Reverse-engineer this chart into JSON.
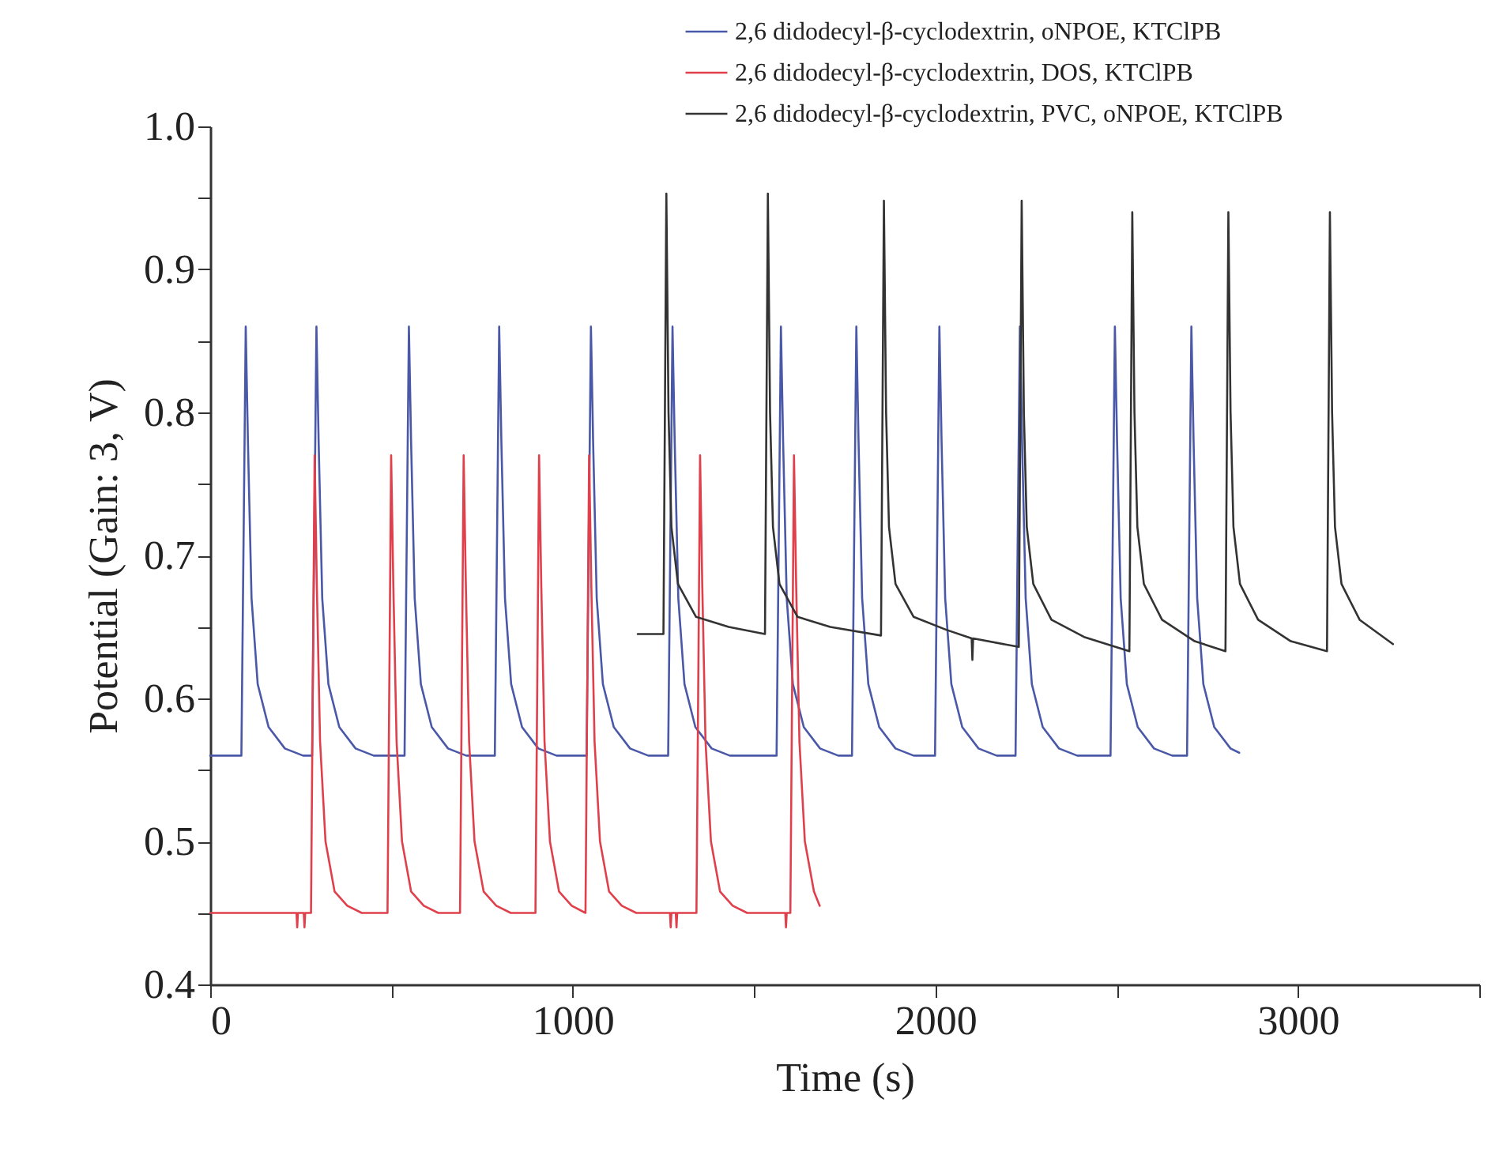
{
  "chart_data": {
    "type": "line",
    "xlabel": "Time (s)",
    "ylabel": "Potential (Gain: 3, V)",
    "xlim": [
      0,
      3500
    ],
    "ylim": [
      0.4,
      1.0
    ],
    "xticks": [
      0,
      {
        "value": 500,
        "label": null
      },
      1000,
      {
        "value": 1500,
        "label": null
      },
      2000,
      {
        "value": 2500,
        "label": null
      },
      3000,
      {
        "value": 3500,
        "label": null
      }
    ],
    "yticks": [
      0.4,
      {
        "value": 0.45,
        "label": null
      },
      0.5,
      {
        "value": 0.55,
        "label": null
      },
      0.6,
      {
        "value": 0.65,
        "label": null
      },
      0.7,
      {
        "value": 0.75,
        "label": null
      },
      0.8,
      {
        "value": 0.85,
        "label": null
      },
      0.9,
      {
        "value": 0.95,
        "label": null
      },
      {
        "value": 1,
        "label": "1.0"
      }
    ],
    "grid": false,
    "legend": "top right",
    "marker": "none",
    "line_style": "solid",
    "series": [
      {
        "name": "2,6 didodecyl-β-cyclodextrin, oNPOE, KTClPB",
        "color": "#4a58a8",
        "x": [
          0,
          86,
          98,
          104,
          114,
          131,
          161,
          206,
          256,
          281,
          293,
          299,
          309,
          326,
          356,
          401,
          451,
          536,
          548,
          554,
          564,
          581,
          611,
          656,
          706,
          785,
          797,
          803,
          813,
          830,
          860,
          905,
          955,
          1038,
          1050,
          1056,
          1066,
          1083,
          1113,
          1158,
          1208,
          1263,
          1275,
          1281,
          1291,
          1308,
          1338,
          1383,
          1433,
          1562,
          1574,
          1580,
          1590,
          1607,
          1637,
          1682,
          1732,
          1770,
          1782,
          1788,
          1798,
          1815,
          1845,
          1890,
          1940,
          1999,
          2011,
          2017,
          2027,
          2044,
          2074,
          2119,
          2169,
          2221,
          2233,
          2239,
          2249,
          2266,
          2296,
          2341,
          2391,
          2483,
          2495,
          2501,
          2511,
          2528,
          2558,
          2603,
          2653,
          2694,
          2706,
          2712,
          2722,
          2739,
          2769,
          2814,
          2838
        ],
        "values": [
          0.56,
          0.56,
          0.86,
          0.78,
          0.67,
          0.61,
          0.58,
          0.565,
          0.56,
          0.56,
          0.86,
          0.78,
          0.67,
          0.61,
          0.58,
          0.565,
          0.56,
          0.56,
          0.86,
          0.78,
          0.67,
          0.61,
          0.58,
          0.565,
          0.56,
          0.56,
          0.86,
          0.78,
          0.67,
          0.61,
          0.58,
          0.565,
          0.56,
          0.56,
          0.86,
          0.78,
          0.67,
          0.61,
          0.58,
          0.565,
          0.56,
          0.56,
          0.86,
          0.78,
          0.67,
          0.61,
          0.58,
          0.565,
          0.56,
          0.56,
          0.86,
          0.78,
          0.67,
          0.61,
          0.58,
          0.565,
          0.56,
          0.56,
          0.86,
          0.78,
          0.67,
          0.61,
          0.58,
          0.565,
          0.56,
          0.56,
          0.86,
          0.78,
          0.67,
          0.61,
          0.58,
          0.565,
          0.56,
          0.56,
          0.86,
          0.78,
          0.67,
          0.61,
          0.58,
          0.565,
          0.56,
          0.56,
          0.86,
          0.78,
          0.67,
          0.61,
          0.58,
          0.565,
          0.56,
          0.56,
          0.86,
          0.78,
          0.67,
          0.61,
          0.58,
          0.565,
          0.562
        ]
      },
      {
        "name": "2,6 didodecyl-β-cyclodextrin, DOS, KTClPB",
        "color": "#e0404c",
        "x": [
          0,
          238,
          240,
          242,
          258,
          260,
          262,
          278,
          288,
          294,
          303,
          318,
          343,
          378,
          418,
          489,
          499,
          505,
          514,
          529,
          554,
          589,
          629,
          689,
          699,
          705,
          714,
          729,
          754,
          789,
          829,
          897,
          907,
          913,
          922,
          937,
          962,
          997,
          1035,
          1045,
          1051,
          1060,
          1075,
          1100,
          1135,
          1175,
          1268,
          1270,
          1272,
          1284,
          1286,
          1288,
          1341,
          1351,
          1357,
          1366,
          1381,
          1406,
          1441,
          1481,
          1586,
          1588,
          1590,
          1600,
          1610,
          1616,
          1625,
          1640,
          1665,
          1681
        ],
        "values": [
          0.45,
          0.45,
          0.44,
          0.45,
          0.45,
          0.44,
          0.45,
          0.45,
          0.77,
          0.68,
          0.57,
          0.5,
          0.465,
          0.455,
          0.45,
          0.45,
          0.77,
          0.68,
          0.57,
          0.5,
          0.465,
          0.455,
          0.45,
          0.45,
          0.77,
          0.68,
          0.57,
          0.5,
          0.465,
          0.455,
          0.45,
          0.45,
          0.77,
          0.68,
          0.57,
          0.5,
          0.465,
          0.455,
          0.45,
          0.77,
          0.68,
          0.57,
          0.5,
          0.465,
          0.455,
          0.45,
          0.45,
          0.44,
          0.45,
          0.45,
          0.44,
          0.45,
          0.45,
          0.77,
          0.68,
          0.57,
          0.5,
          0.465,
          0.455,
          0.45,
          0.45,
          0.44,
          0.45,
          0.45,
          0.77,
          0.68,
          0.57,
          0.5,
          0.465,
          0.455
        ]
      },
      {
        "name": "2,6 didodecyl-β-cyclodextrin, PVC, oNPOE, KTClPB",
        "color": "#333333",
        "x": [
          1179,
          1250,
          1258,
          1264,
          1272,
          1290,
          1340,
          1430,
          1530,
          1538,
          1544,
          1552,
          1570,
          1620,
          1710,
          1850,
          1858,
          1864,
          1872,
          1890,
          1940,
          2030,
          2100,
          2102,
          2104,
          2230,
          2238,
          2244,
          2252,
          2270,
          2320,
          2410,
          2535,
          2543,
          2549,
          2557,
          2575,
          2625,
          2715,
          2800,
          2808,
          2814,
          2822,
          2840,
          2890,
          2980,
          3080,
          3088,
          3094,
          3102,
          3120,
          3170,
          3262
        ],
        "values": [
          0.645,
          0.645,
          0.953,
          0.8,
          0.72,
          0.68,
          0.657,
          0.65,
          0.645,
          0.953,
          0.8,
          0.72,
          0.68,
          0.657,
          0.65,
          0.644,
          0.948,
          0.8,
          0.72,
          0.68,
          0.657,
          0.648,
          0.642,
          0.627,
          0.642,
          0.636,
          0.948,
          0.8,
          0.72,
          0.68,
          0.655,
          0.643,
          0.633,
          0.94,
          0.8,
          0.72,
          0.68,
          0.655,
          0.64,
          0.633,
          0.94,
          0.8,
          0.72,
          0.68,
          0.655,
          0.64,
          0.633,
          0.94,
          0.8,
          0.72,
          0.68,
          0.655,
          0.638
        ]
      }
    ]
  }
}
